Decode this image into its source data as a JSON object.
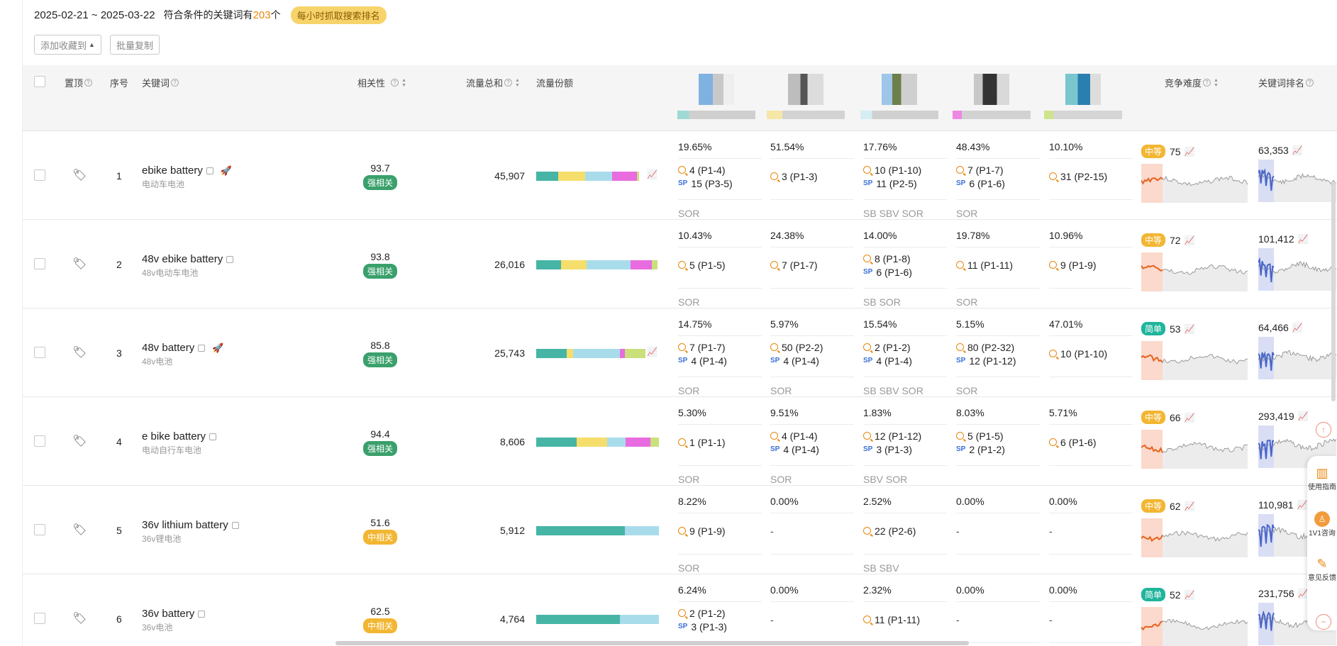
{
  "header": {
    "date_range": "2025-02-21 ~ 2025-03-22",
    "count_prefix": "符合条件的关键词有",
    "count": "203",
    "count_suffix": "个",
    "hourly_badge": "每小时抓取搜索排名"
  },
  "toolbar": {
    "add_favorite": "添加收藏到",
    "batch_copy": "批量复制"
  },
  "columns": {
    "pin": "置顶",
    "index": "序号",
    "keyword": "关键词",
    "relevance": "相关性",
    "traffic_total": "流量总和",
    "traffic_share": "流量份额",
    "difficulty": "竞争难度",
    "keyword_rank": "关键词排名"
  },
  "colors": {
    "share_teal": "#46b5a5",
    "share_yellow": "#f5de6b",
    "share_lightblue": "#a9dceb",
    "share_pink": "#e86ce0",
    "share_lime": "#c9e07b",
    "strong_tag": "#3aa06b",
    "mid_tag": "#f2b632",
    "easy_tag": "#1fb59c",
    "accent_orange": "#e8870c",
    "rank_line": "#4a66c8"
  },
  "rows": [
    {
      "index": "1",
      "keyword": "ebike battery",
      "keyword_cn": "电动车电池",
      "has_emoji": true,
      "relevance": "93.7",
      "relevance_tag": "强相关",
      "relevance_level": "strong",
      "traffic": "45,907",
      "share": [
        [
          0.18,
          "teal"
        ],
        [
          0.22,
          "yellow"
        ],
        [
          0.22,
          "lightblue"
        ],
        [
          0.2,
          "pink"
        ],
        [
          0.02,
          "lime"
        ]
      ],
      "share_icon": true,
      "comps": [
        {
          "pct": "19.65%",
          "items": [
            [
              "q",
              "4 (P1-4)"
            ],
            [
              "sp",
              "15 (P3-5)"
            ]
          ],
          "src": "SOR"
        },
        {
          "pct": "51.54%",
          "items": [
            [
              "q",
              "3 (P1-3)"
            ]
          ],
          "src": ""
        },
        {
          "pct": "17.76%",
          "items": [
            [
              "q",
              "10 (P1-10)"
            ],
            [
              "sp",
              "11 (P2-5)"
            ]
          ],
          "src": "SB SBV SOR"
        },
        {
          "pct": "48.43%",
          "items": [
            [
              "q",
              "7 (P1-7)"
            ],
            [
              "sp",
              "6 (P1-6)"
            ]
          ],
          "src": "SOR"
        },
        {
          "pct": "10.10%",
          "items": [
            [
              "q",
              "31 (P2-15)"
            ]
          ],
          "src": ""
        }
      ],
      "difficulty_label": "中等",
      "difficulty_level": "mid",
      "difficulty": "75",
      "rank": "63,353"
    },
    {
      "index": "2",
      "keyword": "48v ebike battery",
      "keyword_cn": "48v电动车电池",
      "has_emoji": false,
      "relevance": "93.8",
      "relevance_tag": "强相关",
      "relevance_level": "strong",
      "traffic": "26,016",
      "share": [
        [
          0.2,
          "teal"
        ],
        [
          0.21,
          "yellow"
        ],
        [
          0.36,
          "lightblue"
        ],
        [
          0.17,
          "pink"
        ],
        [
          0.05,
          "lime"
        ]
      ],
      "share_icon": false,
      "comps": [
        {
          "pct": "10.43%",
          "items": [
            [
              "q",
              "5 (P1-5)"
            ]
          ],
          "src": "SOR"
        },
        {
          "pct": "24.38%",
          "items": [
            [
              "q",
              "7 (P1-7)"
            ]
          ],
          "src": ""
        },
        {
          "pct": "14.00%",
          "items": [
            [
              "q",
              "8 (P1-8)"
            ],
            [
              "sp",
              "6 (P1-6)"
            ]
          ],
          "src": "SB SOR"
        },
        {
          "pct": "19.78%",
          "items": [
            [
              "q",
              "11 (P1-11)"
            ]
          ],
          "src": "SOR"
        },
        {
          "pct": "10.96%",
          "items": [
            [
              "q",
              "9 (P1-9)"
            ]
          ],
          "src": ""
        }
      ],
      "difficulty_label": "中等",
      "difficulty_level": "mid",
      "difficulty": "72",
      "rank": "101,412"
    },
    {
      "index": "3",
      "keyword": "48v battery",
      "keyword_cn": "48v电池",
      "has_emoji": true,
      "relevance": "85.8",
      "relevance_tag": "强相关",
      "relevance_level": "strong",
      "traffic": "25,743",
      "share": [
        [
          0.25,
          "teal"
        ],
        [
          0.05,
          "yellow"
        ],
        [
          0.38,
          "lightblue"
        ],
        [
          0.04,
          "pink"
        ],
        [
          0.17,
          "lime"
        ]
      ],
      "share_icon": true,
      "comps": [
        {
          "pct": "14.75%",
          "items": [
            [
              "q",
              "7 (P1-7)"
            ],
            [
              "sp",
              "4 (P1-4)"
            ]
          ],
          "src": "SOR"
        },
        {
          "pct": "5.97%",
          "items": [
            [
              "q",
              "50 (P2-2)"
            ],
            [
              "sp",
              "4 (P1-4)"
            ]
          ],
          "src": "SOR"
        },
        {
          "pct": "15.54%",
          "items": [
            [
              "q",
              "2 (P1-2)"
            ],
            [
              "sp",
              "4 (P1-4)"
            ]
          ],
          "src": "SB SBV SOR"
        },
        {
          "pct": "5.15%",
          "items": [
            [
              "q",
              "80 (P2-32)"
            ],
            [
              "sp",
              "12 (P1-12)"
            ]
          ],
          "src": "SOR"
        },
        {
          "pct": "47.01%",
          "items": [
            [
              "q",
              "10 (P1-10)"
            ]
          ],
          "src": ""
        }
      ],
      "difficulty_label": "简单",
      "difficulty_level": "easy",
      "difficulty": "53",
      "rank": "64,466"
    },
    {
      "index": "4",
      "keyword": "e bike battery",
      "keyword_cn": "电动自行车电池",
      "has_emoji": false,
      "relevance": "94.4",
      "relevance_tag": "强相关",
      "relevance_level": "strong",
      "traffic": "8,606",
      "share": [
        [
          0.33,
          "teal"
        ],
        [
          0.25,
          "yellow"
        ],
        [
          0.15,
          "lightblue"
        ],
        [
          0.2,
          "pink"
        ],
        [
          0.07,
          "lime"
        ]
      ],
      "share_icon": false,
      "comps": [
        {
          "pct": "5.30%",
          "items": [
            [
              "q",
              "1 (P1-1)"
            ]
          ],
          "src": "SOR"
        },
        {
          "pct": "9.51%",
          "items": [
            [
              "q",
              "4 (P1-4)"
            ],
            [
              "sp",
              "4 (P1-4)"
            ]
          ],
          "src": "SOR"
        },
        {
          "pct": "1.83%",
          "items": [
            [
              "q",
              "12 (P1-12)"
            ],
            [
              "sp",
              "3 (P1-3)"
            ]
          ],
          "src": "SBV SOR"
        },
        {
          "pct": "8.03%",
          "items": [
            [
              "q",
              "5 (P1-5)"
            ],
            [
              "sp",
              "2 (P1-2)"
            ]
          ],
          "src": ""
        },
        {
          "pct": "5.71%",
          "items": [
            [
              "q",
              "6 (P1-6)"
            ]
          ],
          "src": ""
        }
      ],
      "difficulty_label": "中等",
      "difficulty_level": "mid",
      "difficulty": "66",
      "rank": "293,419"
    },
    {
      "index": "5",
      "keyword": "36v lithium battery",
      "keyword_cn": "36v锂电池",
      "has_emoji": false,
      "relevance": "51.6",
      "relevance_tag": "中相关",
      "relevance_level": "mid",
      "traffic": "5,912",
      "share": [
        [
          0.72,
          "teal"
        ],
        [
          0.28,
          "lightblue"
        ]
      ],
      "share_icon": false,
      "comps": [
        {
          "pct": "8.22%",
          "items": [
            [
              "q",
              "9 (P1-9)"
            ]
          ],
          "src": "SOR"
        },
        {
          "pct": "0.00%",
          "items": [
            [
              "dash",
              "-"
            ]
          ],
          "src": ""
        },
        {
          "pct": "2.52%",
          "items": [
            [
              "q",
              "22 (P2-6)"
            ]
          ],
          "src": "SB SBV"
        },
        {
          "pct": "0.00%",
          "items": [
            [
              "dash",
              "-"
            ]
          ],
          "src": ""
        },
        {
          "pct": "0.00%",
          "items": [
            [
              "dash",
              "-"
            ]
          ],
          "src": ""
        }
      ],
      "difficulty_label": "中等",
      "difficulty_level": "mid",
      "difficulty": "62",
      "rank": "110,981"
    },
    {
      "index": "6",
      "keyword": "36v battery",
      "keyword_cn": "36v电池",
      "has_emoji": false,
      "relevance": "62.5",
      "relevance_tag": "中相关",
      "relevance_level": "mid",
      "traffic": "4,764",
      "share": [
        [
          0.68,
          "teal"
        ],
        [
          0.32,
          "lightblue"
        ]
      ],
      "share_icon": false,
      "comps": [
        {
          "pct": "6.24%",
          "items": [
            [
              "q",
              "2 (P1-2)"
            ],
            [
              "sp",
              "3 (P1-3)"
            ]
          ],
          "src": ""
        },
        {
          "pct": "0.00%",
          "items": [
            [
              "dash",
              "-"
            ]
          ],
          "src": ""
        },
        {
          "pct": "2.32%",
          "items": [
            [
              "q",
              "11 (P1-11)"
            ]
          ],
          "src": ""
        },
        {
          "pct": "0.00%",
          "items": [
            [
              "dash",
              "-"
            ]
          ],
          "src": ""
        },
        {
          "pct": "0.00%",
          "items": [
            [
              "dash",
              "-"
            ]
          ],
          "src": ""
        }
      ],
      "difficulty_label": "简单",
      "difficulty_level": "easy",
      "difficulty": "52",
      "rank": "231,756"
    }
  ],
  "side": {
    "guide": "使用指南",
    "consult": "1V1咨询",
    "feedback": "意见反馈"
  }
}
